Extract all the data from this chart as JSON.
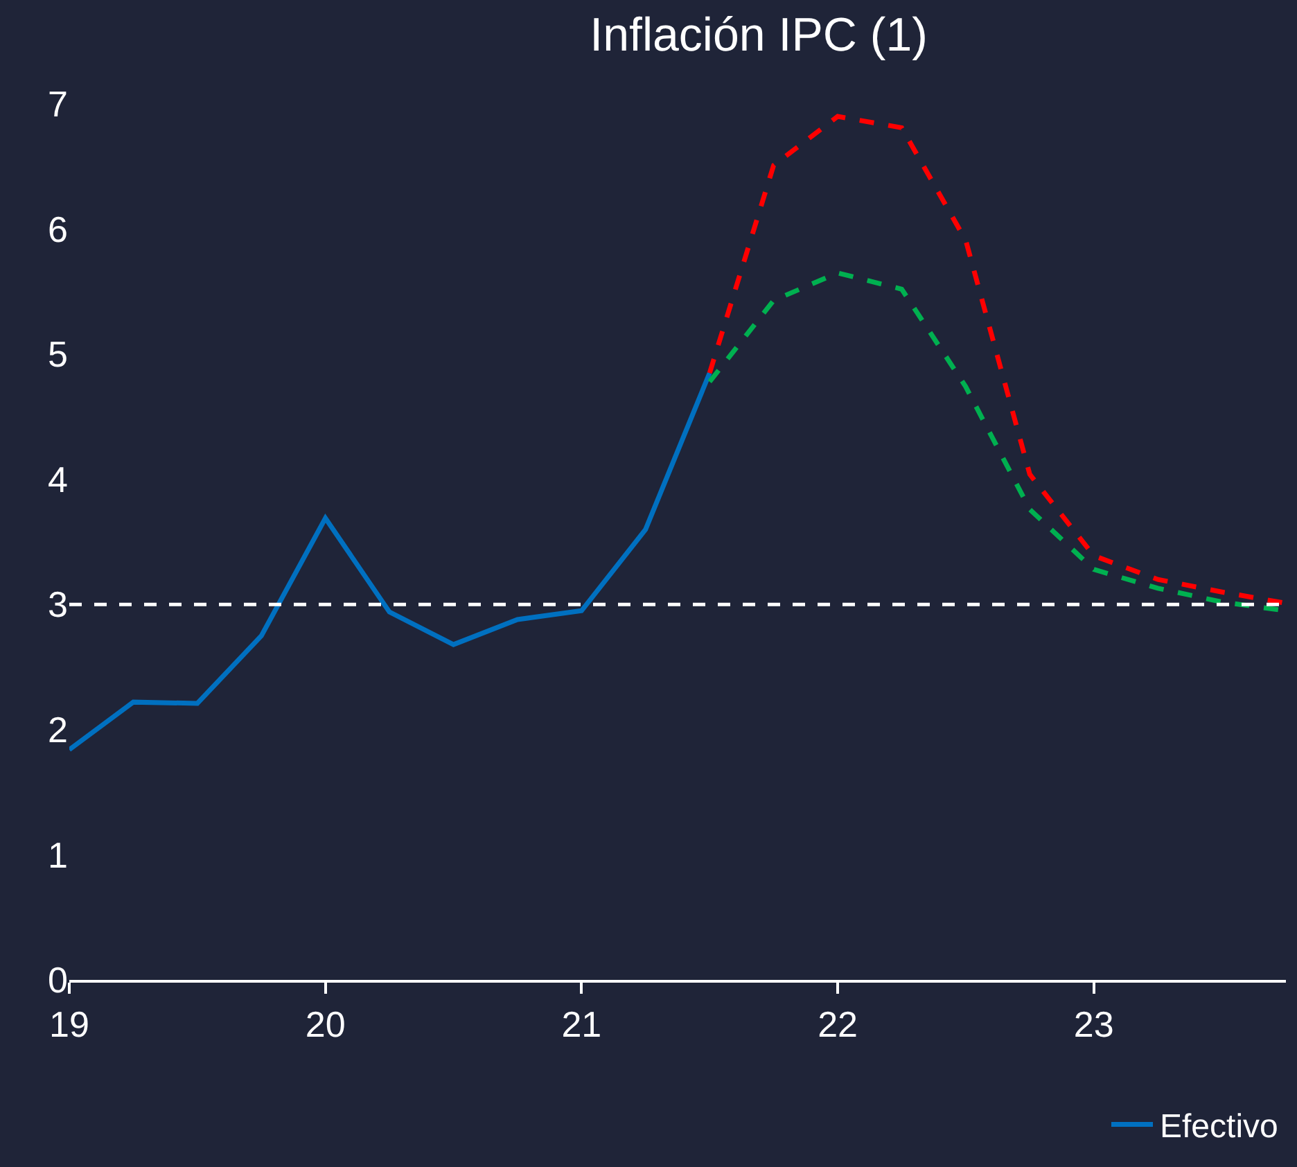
{
  "chart_data": {
    "type": "line",
    "title": "Inflación IPC (1)",
    "xlim": [
      19,
      23.75
    ],
    "xticks": [
      19,
      20,
      21,
      22,
      23
    ],
    "ylim": [
      0,
      7
    ],
    "yticks": [
      0,
      1,
      2,
      3,
      4,
      5,
      6,
      7
    ],
    "grid": false,
    "legend": "bottom right",
    "marker": "none",
    "series": [
      {
        "name": "Efectivo",
        "color": "#0070c0",
        "line_style": "solid",
        "x": [
          19,
          19.25,
          19.5,
          19.75,
          20,
          20.25,
          20.5,
          20.75,
          21,
          21.25,
          21.5
        ],
        "values": [
          1.84,
          2.22,
          2.21,
          2.75,
          3.69,
          2.94,
          2.68,
          2.88,
          2.95,
          3.6,
          4.85
        ]
      },
      {
        "color": "#ff0000",
        "line_style": "dashed",
        "x": [
          21.5,
          21.75,
          22,
          22.25,
          22.5,
          22.75,
          23,
          23.25,
          23.5,
          23.75
        ],
        "values": [
          4.85,
          6.51,
          6.9,
          6.81,
          5.91,
          4.04,
          3.39,
          3.2,
          3.1,
          3.01
        ]
      },
      {
        "color": "#00b050",
        "line_style": "dashed",
        "x": [
          21.5,
          21.75,
          22,
          22.25,
          22.5,
          22.75,
          23,
          23.25,
          23.5,
          23.75
        ],
        "values": [
          4.78,
          5.43,
          5.65,
          5.52,
          4.74,
          3.76,
          3.28,
          3.13,
          3.02,
          2.95
        ]
      }
    ],
    "ref_lines": [
      {
        "axis": "y",
        "value": 3,
        "color": "#ffffff",
        "line_style": "dashed"
      }
    ]
  }
}
